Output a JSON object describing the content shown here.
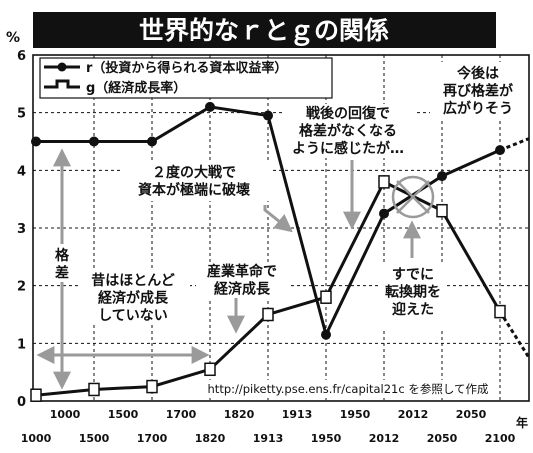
{
  "chart_data": {
    "type": "line",
    "title": "世界的なｒとｇの関係",
    "ylabel": "%",
    "xunit": "年",
    "ylim": [
      0,
      6
    ],
    "yticks": [
      "0",
      "1",
      "2",
      "3",
      "4",
      "5",
      "6"
    ],
    "grid": true,
    "legend_position": "top-left",
    "x_periods_top": [
      "1000",
      "1500",
      "1700",
      "1820",
      "1913",
      "1950",
      "2012",
      "2050"
    ],
    "x_periods_bottom": [
      "1000",
      "1500",
      "1700",
      "1820",
      "1913",
      "1950",
      "2012",
      "2050",
      "2100"
    ],
    "series": [
      {
        "name": "r（投資から得られる資本収益率）",
        "values": [
          4.5,
          4.5,
          4.5,
          5.1,
          4.95,
          1.15,
          3.25,
          3.9,
          4.35
        ],
        "projected_from": 8,
        "projection_end": 4.55
      },
      {
        "name": "g（経済成長率）",
        "values": [
          0.1,
          0.2,
          0.25,
          0.55,
          1.5,
          1.8,
          3.8,
          3.3,
          1.55
        ],
        "projected_from": 8,
        "projection_end": 0.75
      }
    ],
    "annotations": {
      "gap_label": "格差",
      "past_note": "昔はほとんど\n経済が成長\nしていない",
      "war_note": "２度の大戦で\n資本が極端に破壊",
      "industrial_note": "産業革命で\n経済成長",
      "postwar_note": "戦後の回復で\n格差がなくなる\nように感じたが…",
      "transition_note": "すでに\n転換期を\n迎えた",
      "future_note": "今後は\n再び格差が\n広がりそう",
      "source": "http://piketty.pse.ens.fr/capital21c を参照して作成"
    }
  }
}
